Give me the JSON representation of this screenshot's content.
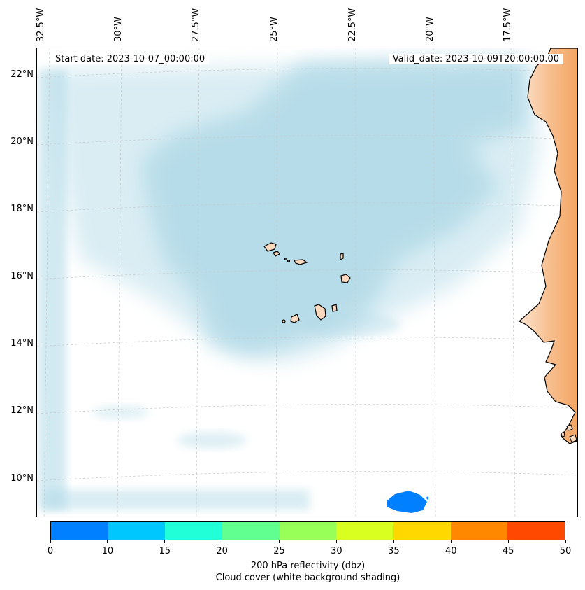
{
  "map": {
    "start_date": "Start date: 2023-10-07_00:00:00",
    "valid_date": "Valid_date: 2023-10-09T20:00:00.00",
    "lon_labels": [
      "32.5°W",
      "30°W",
      "27.5°W",
      "25°W",
      "22.5°W",
      "20°W",
      "17.5°W"
    ],
    "lat_labels": [
      "22°N",
      "20°N",
      "18°N",
      "16°N",
      "14°N",
      "12°N",
      "10°N"
    ],
    "land_color": "#f4a460",
    "cloud_color": "#add8e6"
  },
  "colorbar": {
    "ticks": [
      "0",
      "10",
      "15",
      "20",
      "25",
      "30",
      "35",
      "40",
      "45",
      "50"
    ],
    "colors": [
      "#0080ff",
      "#00c8ff",
      "#20ffd8",
      "#60ff90",
      "#98ff58",
      "#d8ff20",
      "#ffd800",
      "#ff8800",
      "#ff4800"
    ],
    "label": "200 hPa reflectivity (dbz)",
    "sublabel": "Cloud cover (white background shading)"
  }
}
